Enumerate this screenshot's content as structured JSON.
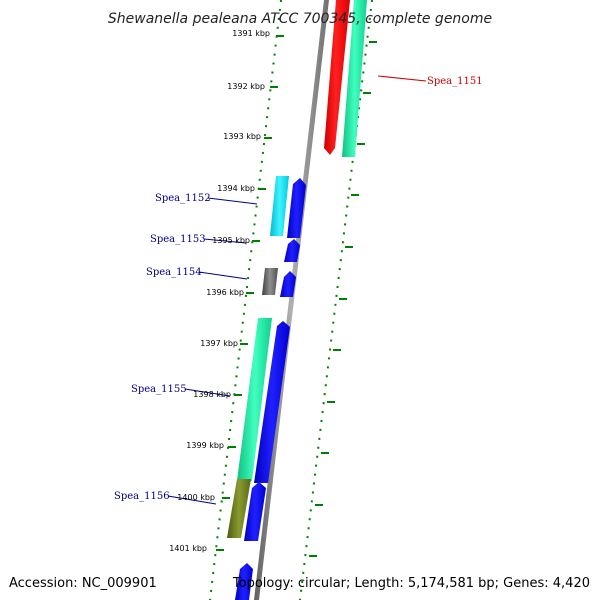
{
  "title": "Shewanella pealeana ATCC 700345, complete genome",
  "accession": "Accession: NC_009901",
  "summary": "Topology: circular; Length: 5,174,581 bp; Genes: 4,420",
  "colors": {
    "backbone": "#808080",
    "tick": "#008000",
    "label_blue": "#00008b",
    "label_red": "#cc0000",
    "gene_red": "#ff0000",
    "gene_green": "#20e8a0",
    "gene_blue": "#0000ff",
    "gene_cyan": "#00e0f0",
    "gene_gray": "#606060",
    "gene_olive": "#6b7a20"
  },
  "scale_labels": [
    "1391 kbp",
    "1392 kbp",
    "1393 kbp",
    "1394 kbp",
    "1395 kbp",
    "1396 kbp",
    "1397 kbp",
    "1398 kbp",
    "1399 kbp",
    "1400 kbp",
    "1401 kbp"
  ],
  "gene_labels": [
    {
      "name": "Spea_1151",
      "color": "red"
    },
    {
      "name": "Spea_1152",
      "color": "blue"
    },
    {
      "name": "Spea_1153",
      "color": "blue"
    },
    {
      "name": "Spea_1154",
      "color": "blue"
    },
    {
      "name": "Spea_1155",
      "color": "blue"
    },
    {
      "name": "Spea_1156",
      "color": "blue"
    }
  ]
}
